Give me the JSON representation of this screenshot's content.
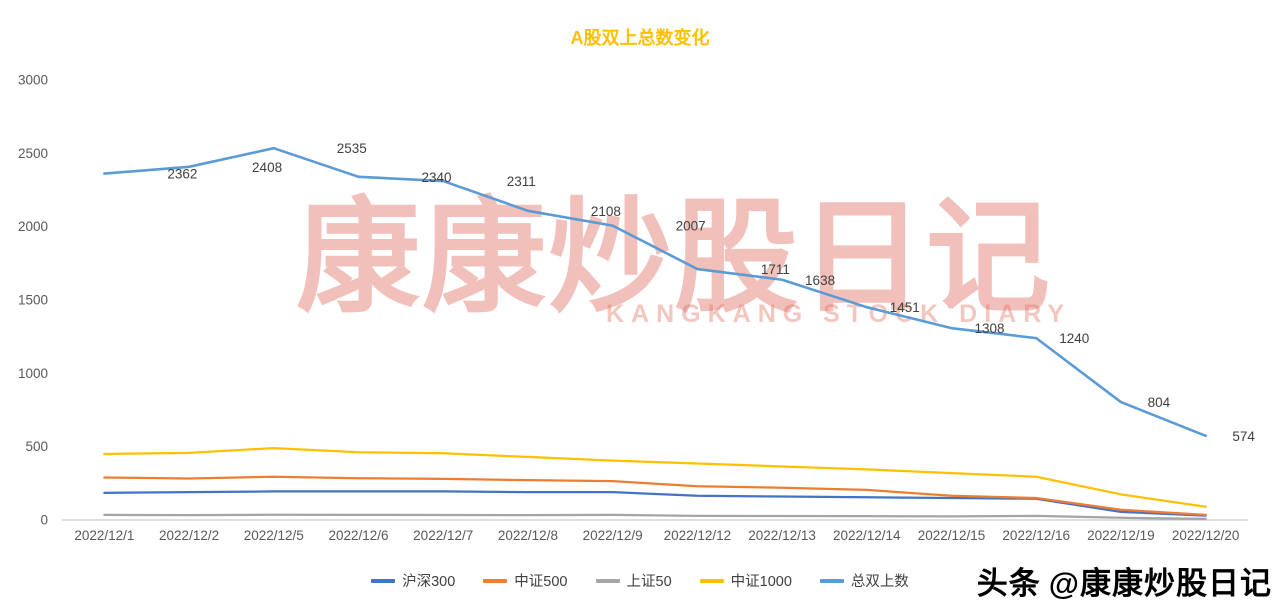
{
  "page": {
    "background_color": "#FFFFFF"
  },
  "watermark": {
    "text": "康康炒股日记",
    "subtext": "KANGKANG STOCK DIARY",
    "color": "#DF6A5A"
  },
  "footer": {
    "brand": "头条",
    "handle": "@康康炒股日记"
  },
  "chart_data": {
    "type": "line",
    "title": "A股双上总数变化",
    "title_color": "#FFC000",
    "xlabel": "",
    "ylabel": "",
    "ylim": [
      0,
      3000
    ],
    "y_ticks": [
      0,
      500,
      1000,
      1500,
      2000,
      2500,
      3000
    ],
    "grid": false,
    "legend_position": "bottom",
    "axis_text_color": "#595959",
    "data_label_color": "#404040",
    "categories": [
      "2022/12/1",
      "2022/12/2",
      "2022/12/5",
      "2022/12/6",
      "2022/12/7",
      "2022/12/8",
      "2022/12/9",
      "2022/12/12",
      "2022/12/13",
      "2022/12/14",
      "2022/12/15",
      "2022/12/16",
      "2022/12/19",
      "2022/12/20"
    ],
    "series": [
      {
        "name": "沪深300",
        "color": "#4472C4",
        "labeled": false,
        "values": [
          185,
          190,
          195,
          195,
          195,
          190,
          190,
          165,
          160,
          155,
          150,
          145,
          55,
          30
        ]
      },
      {
        "name": "中证500",
        "color": "#ED7D31",
        "labeled": false,
        "values": [
          290,
          283,
          295,
          285,
          280,
          272,
          265,
          230,
          220,
          205,
          165,
          150,
          70,
          35
        ]
      },
      {
        "name": "上证50",
        "color": "#A5A5A5",
        "labeled": false,
        "values": [
          35,
          33,
          36,
          35,
          34,
          33,
          35,
          28,
          27,
          26,
          25,
          28,
          15,
          8
        ]
      },
      {
        "name": "中证1000",
        "color": "#FFC000",
        "labeled": false,
        "values": [
          450,
          458,
          490,
          462,
          455,
          430,
          405,
          385,
          365,
          345,
          320,
          295,
          175,
          90
        ]
      },
      {
        "name": "总双上数",
        "color": "#5B9BD5",
        "labeled": true,
        "values": [
          2362,
          2408,
          2535,
          2340,
          2311,
          2108,
          2007,
          1711,
          1638,
          1451,
          1308,
          1240,
          804,
          574
        ]
      }
    ]
  }
}
